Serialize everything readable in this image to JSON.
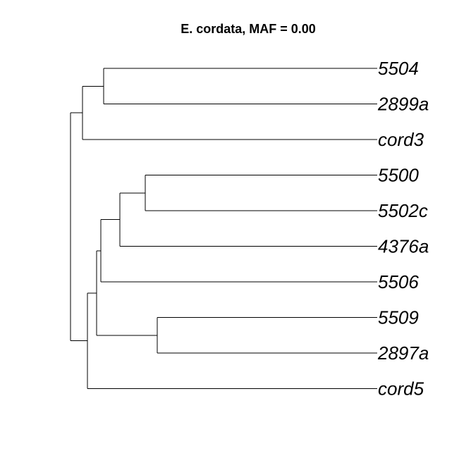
{
  "title": "E. cordata, MAF = 0.00",
  "tree": {
    "tips": [
      "5504",
      "2899a",
      "cord3",
      "5500",
      "5502c",
      "4376a",
      "5506",
      "5509",
      "2897a",
      "cord5"
    ],
    "newick": "(((5504,2899a),cord3),((((5500,5502c),4376a),5506),(5509,2897a)),cord5));"
  }
}
